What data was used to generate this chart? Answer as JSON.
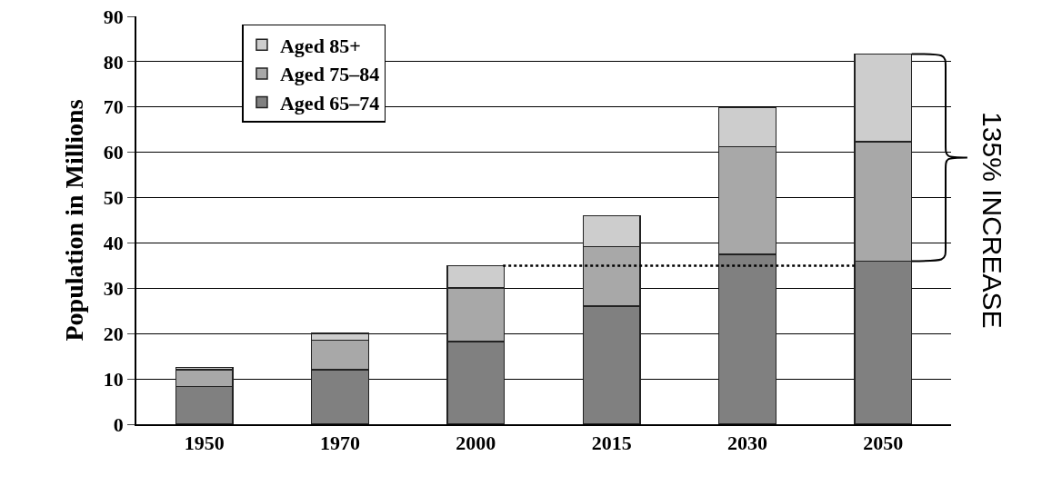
{
  "chart_data": {
    "type": "bar",
    "ylabel": "Population in Millions",
    "categories": [
      "1950",
      "1970",
      "2000",
      "2015",
      "2030",
      "2050"
    ],
    "stacked": true,
    "series": [
      {
        "name": "Aged 65–74",
        "color": "#808080",
        "values": [
          8.3,
          12,
          18.2,
          26.1,
          37.5,
          36
        ]
      },
      {
        "name": "Aged 75–84",
        "color": "#a8a8a8",
        "values": [
          3.7,
          6.5,
          11.9,
          13.1,
          23.7,
          26.3
        ]
      },
      {
        "name": "Aged 85+",
        "color": "#cdcdcd",
        "values": [
          0.5,
          1.5,
          4.9,
          6.8,
          8.7,
          19.4
        ]
      }
    ],
    "ylim": [
      0,
      90
    ],
    "yticks": [
      0,
      10,
      20,
      30,
      40,
      50,
      60,
      70,
      80,
      90
    ],
    "grid": "y",
    "legend": "top left",
    "ref_lines": [
      {
        "axis": "y",
        "value": 35,
        "color": "#000000",
        "line_style": "dotted"
      }
    ],
    "annotations": [
      "135% INCREASE"
    ]
  }
}
